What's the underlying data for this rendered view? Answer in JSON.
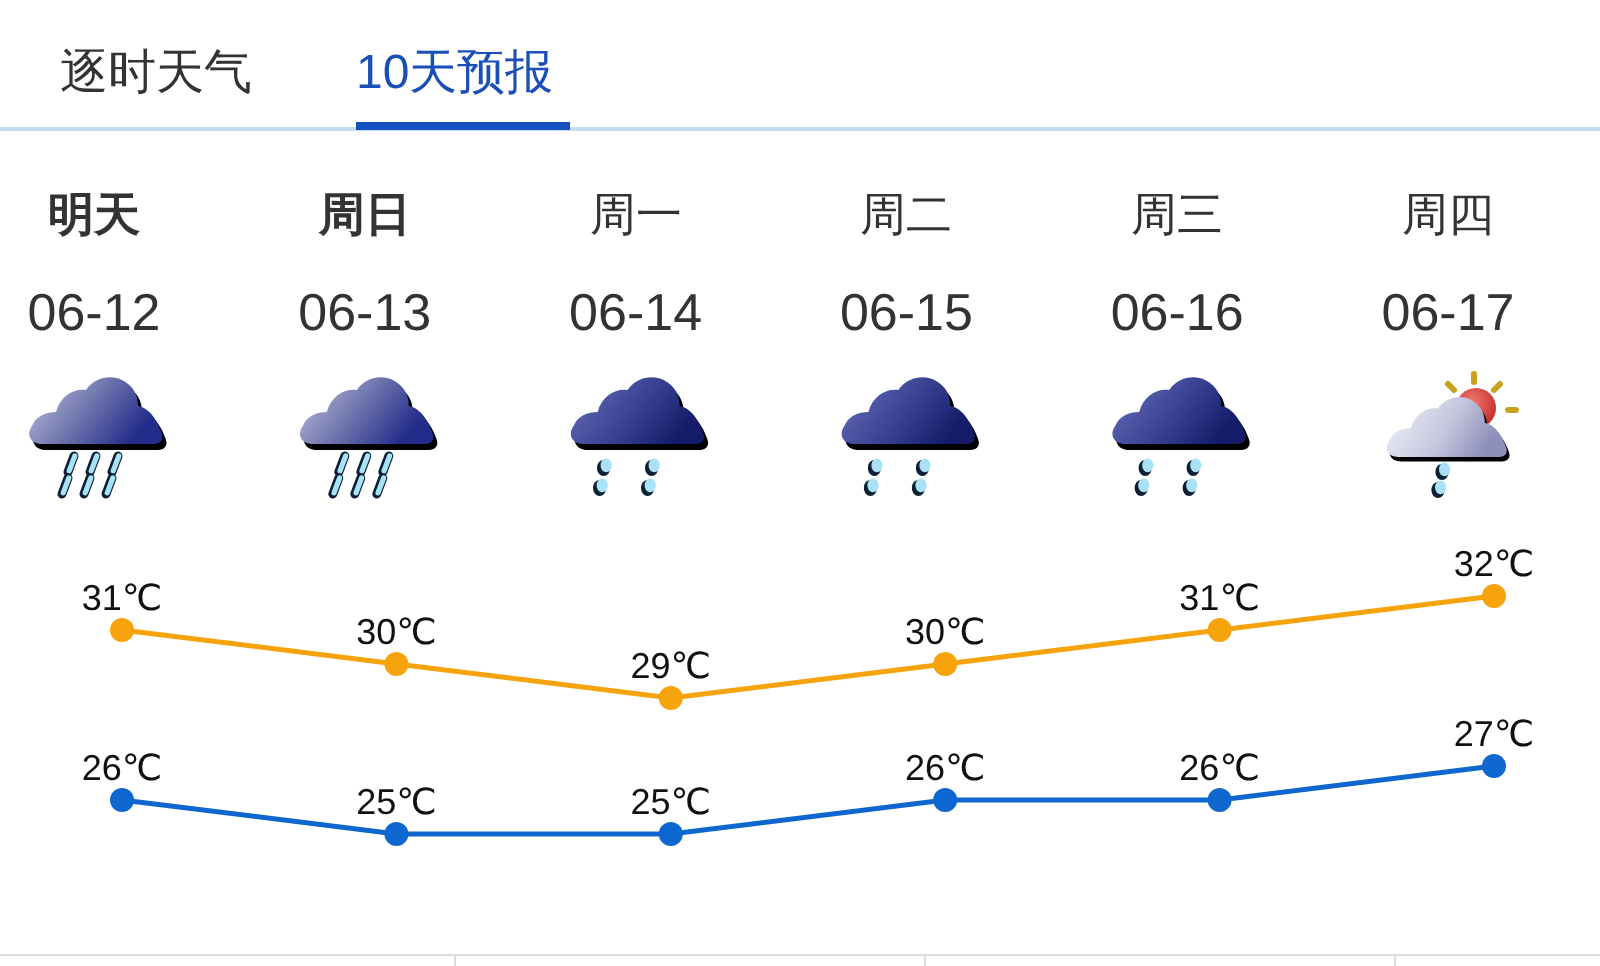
{
  "chart_data": [
    {
      "type": "other",
      "annotations": [
        "逐时天气",
        "10天预报"
      ],
      "categories": [
        "明天\n06-12",
        "周日\n06-13",
        "周一\n06-14",
        "周二\n06-15",
        "周三\n06-16",
        "周四\n06-17"
      ]
    },
    {
      "type": "line",
      "categories": [
        null,
        null,
        null,
        null,
        null,
        null
      ],
      "series": [
        {
          "color": "#f7a30c",
          "values": [
            31,
            30,
            29,
            30,
            31,
            32
          ],
          "value_labels": [
            "31℃",
            "30℃",
            "29℃",
            "30℃",
            "31℃",
            "32℃"
          ]
        },
        {
          "color": "#0e67cf",
          "values": [
            26,
            25,
            25,
            26,
            26,
            27
          ],
          "value_labels": [
            "26℃",
            "25℃",
            "25℃",
            "26℃",
            "26℃",
            "27℃"
          ]
        }
      ],
      "marker": "circle",
      "line_style": "solid"
    }
  ]
}
